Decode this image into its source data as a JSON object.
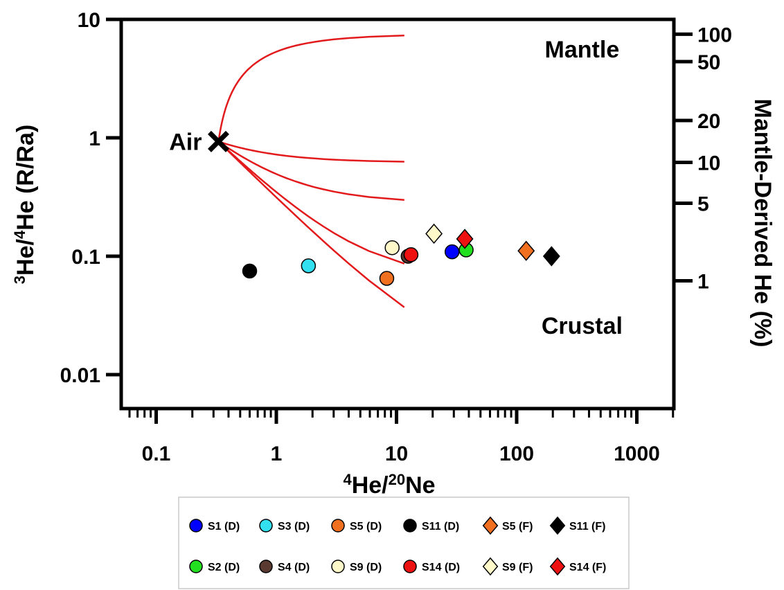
{
  "chart_data": {
    "type": "scatter",
    "x_scale": "log",
    "y_scale": "log",
    "xlim": [
      0.05,
      2000
    ],
    "ylim": [
      0.004,
      10
    ],
    "xlabel_parts": [
      {
        "text": "4",
        "sup": true
      },
      {
        "text": "He/",
        "sup": false
      },
      {
        "text": "20",
        "sup": true
      },
      {
        "text": "Ne",
        "sup": false
      }
    ],
    "ylabel_parts": [
      {
        "text": "3",
        "sup": true
      },
      {
        "text": "He/",
        "sup": false
      },
      {
        "text": "4",
        "sup": true
      },
      {
        "text": "He (R/Ra)",
        "sup": false
      }
    ],
    "y2label": "Mantle-Derived He (%)",
    "x_ticks": [
      {
        "value": 0.1,
        "label": "0.1"
      },
      {
        "value": 1,
        "label": "1"
      },
      {
        "value": 10,
        "label": "10"
      },
      {
        "value": 100,
        "label": "100"
      },
      {
        "value": 1000,
        "label": "1000"
      }
    ],
    "y_ticks": [
      {
        "value": 0.01,
        "label": "0.01"
      },
      {
        "value": 0.1,
        "label": "0.1"
      },
      {
        "value": 1,
        "label": "1"
      },
      {
        "value": 10,
        "label": "10"
      }
    ],
    "y2_ticks": [
      {
        "ratio": 7.5,
        "label": "100"
      },
      {
        "ratio": 4.4,
        "label": "50"
      },
      {
        "ratio": 1.4,
        "label": "20"
      },
      {
        "ratio": 0.62,
        "label": "10"
      },
      {
        "ratio": 0.28,
        "label": "5"
      },
      {
        "ratio": 0.062,
        "label": "1"
      }
    ],
    "air_point": {
      "x": 0.33,
      "y": 0.93,
      "label": "Air"
    },
    "annotations": [
      {
        "text": "Mantle",
        "x": 350,
        "y": 5.6
      },
      {
        "text": "Crustal",
        "x": 350,
        "y": 0.026
      }
    ],
    "mixing_curves": [
      {
        "end_ratio": 7.5
      },
      {
        "end_ratio": 0.62
      },
      {
        "end_ratio": 0.28
      },
      {
        "end_ratio": 0.062
      },
      {
        "end_ratio": 0.011
      }
    ],
    "line_color": "#e31a1c",
    "series": [
      {
        "name": "S1 (D)",
        "marker": "circle",
        "color": "#0000ff",
        "x": 29,
        "y": 0.109
      },
      {
        "name": "S3 (D)",
        "marker": "circle",
        "color": "#33e0f0",
        "x": 1.85,
        "y": 0.083
      },
      {
        "name": "S5 (D)",
        "marker": "circle",
        "color": "#f07020",
        "x": 8.3,
        "y": 0.065
      },
      {
        "name": "S11 (D)",
        "marker": "circle",
        "color": "#000000",
        "x": 0.6,
        "y": 0.075
      },
      {
        "name": "S5 (F)",
        "marker": "diamond",
        "color": "#f07020",
        "x": 120,
        "y": 0.111
      },
      {
        "name": "S11 (F)",
        "marker": "diamond",
        "color": "#000000",
        "x": 195,
        "y": 0.1
      },
      {
        "name": "S2 (D)",
        "marker": "circle",
        "color": "#22e01f",
        "x": 38,
        "y": 0.113
      },
      {
        "name": "S4 (D)",
        "marker": "circle",
        "color": "#5a3a30",
        "x": 12.5,
        "y": 0.1
      },
      {
        "name": "S9 (D)",
        "marker": "circle",
        "color": "#fff8c8",
        "x": 9.2,
        "y": 0.118
      },
      {
        "name": "S14 (D)",
        "marker": "circle",
        "color": "#ee1111",
        "x": 13.2,
        "y": 0.103
      },
      {
        "name": "S9 (F)",
        "marker": "diamond",
        "color": "#fff8c8",
        "x": 20.5,
        "y": 0.155
      },
      {
        "name": "S14 (F)",
        "marker": "diamond",
        "color": "#ee1111",
        "x": 37,
        "y": 0.14
      }
    ],
    "legend_position": "bottom"
  }
}
